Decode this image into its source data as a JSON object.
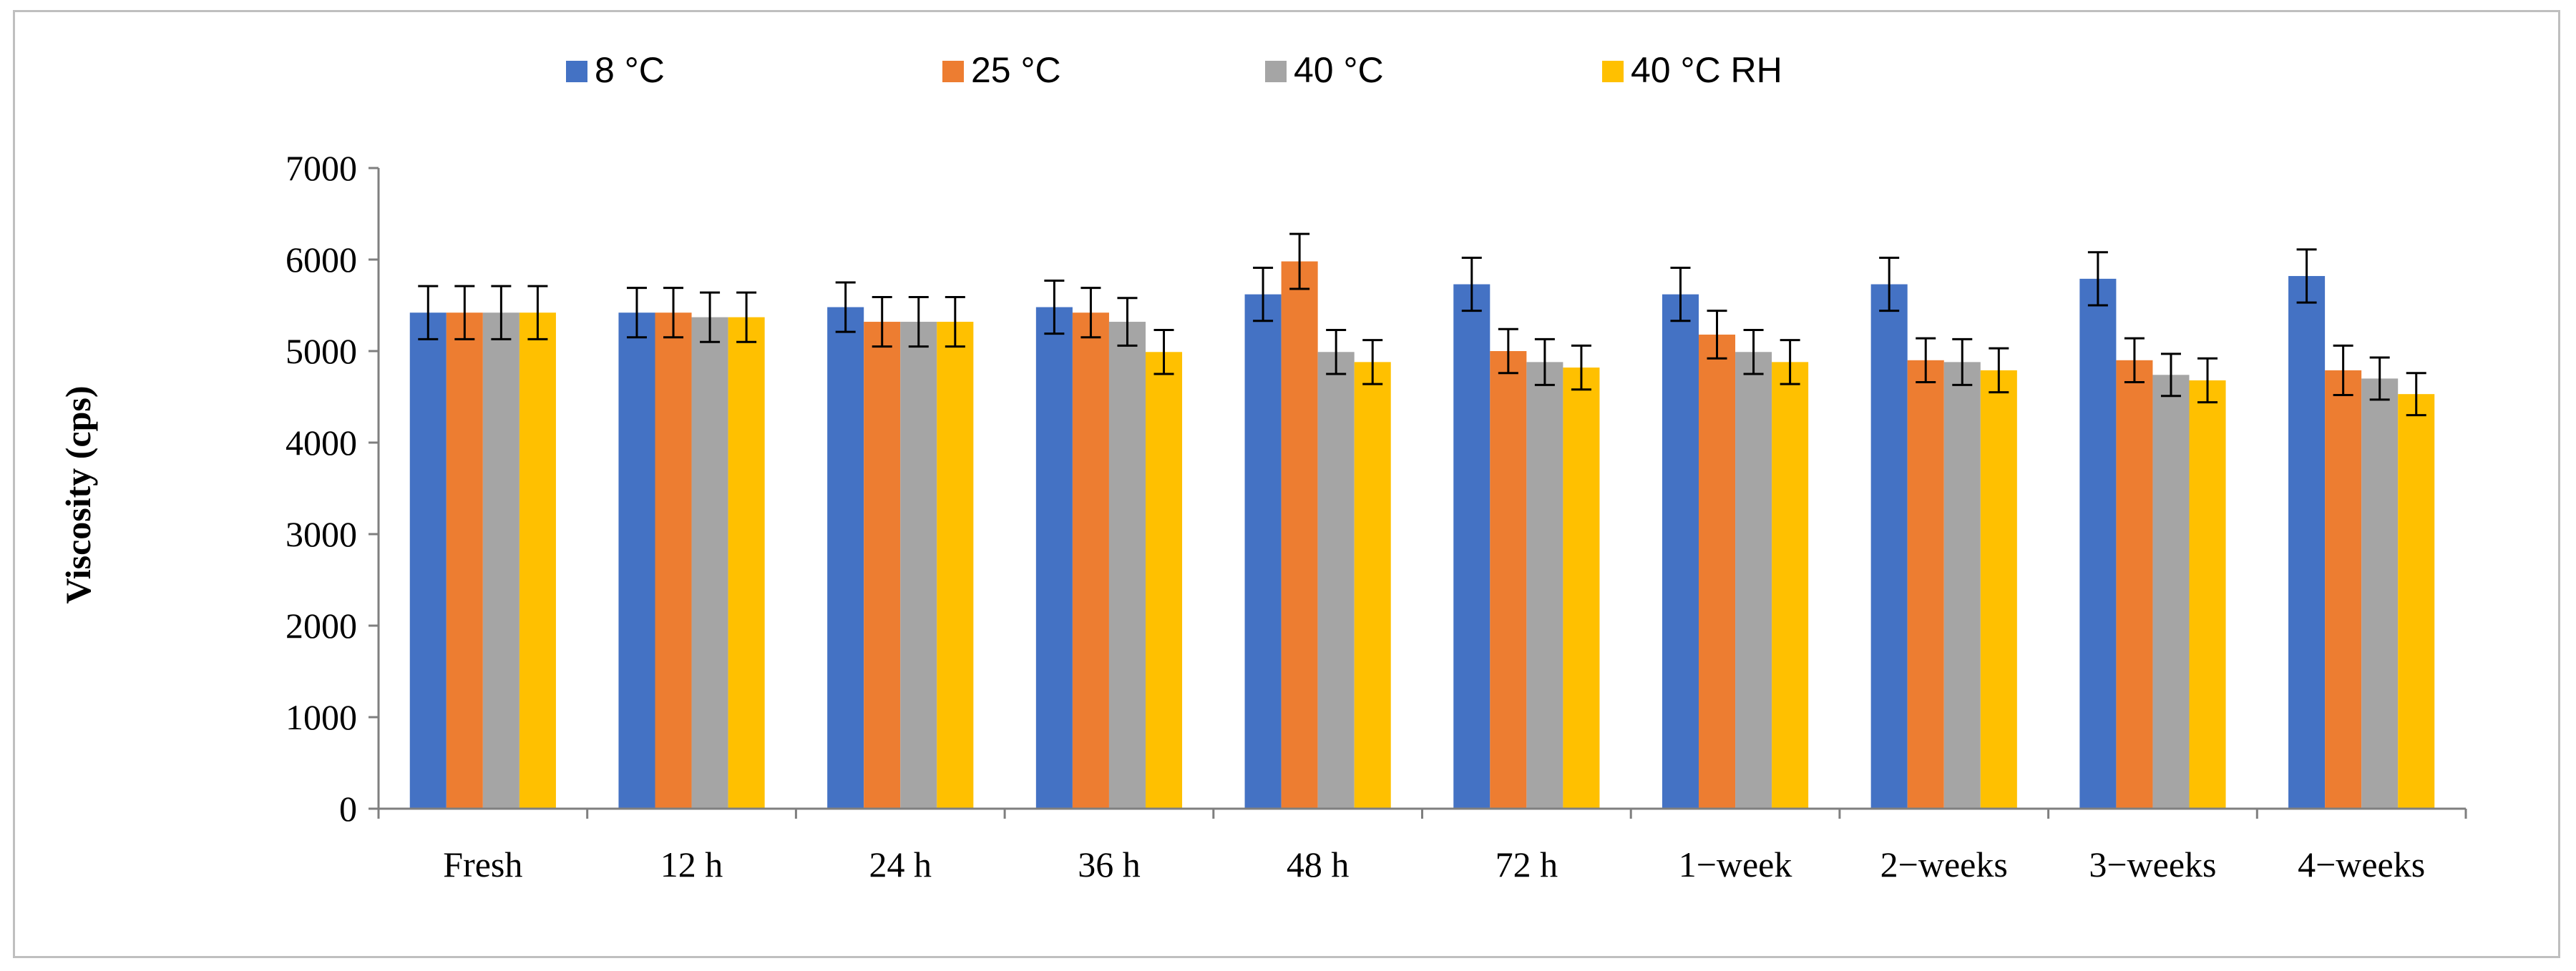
{
  "chart_data": {
    "type": "bar",
    "title": "",
    "xlabel": "",
    "ylabel": "Viscosity (cps)",
    "ylim": [
      0,
      7000
    ],
    "yticks": [
      0,
      1000,
      2000,
      3000,
      4000,
      5000,
      6000,
      7000
    ],
    "grid": false,
    "legend_position": "top",
    "error_bars": true,
    "categories": [
      "Fresh",
      "12 h",
      "24 h",
      "36 h",
      "48 h",
      "72 h",
      "1−week",
      "2−weeks",
      "3−weeks",
      "4−weeks"
    ],
    "series": [
      {
        "name": "8 °C",
        "color": "#4472c4",
        "values": [
          5420,
          5420,
          5480,
          5480,
          5620,
          5730,
          5620,
          5730,
          5790,
          5820
        ],
        "errors": [
          290,
          270,
          270,
          290,
          290,
          290,
          290,
          290,
          290,
          290
        ]
      },
      {
        "name": "25 °C",
        "color": "#ed7d31",
        "values": [
          5420,
          5420,
          5320,
          5420,
          5980,
          5000,
          5180,
          4900,
          4900,
          4790
        ],
        "errors": [
          290,
          270,
          270,
          270,
          300,
          240,
          260,
          240,
          240,
          270
        ]
      },
      {
        "name": "40 °C",
        "color": "#a5a5a5",
        "values": [
          5420,
          5370,
          5320,
          5320,
          4990,
          4880,
          4990,
          4880,
          4740,
          4700
        ],
        "errors": [
          290,
          270,
          270,
          260,
          240,
          250,
          240,
          250,
          230,
          230
        ]
      },
      {
        "name": "40 °C RH",
        "color": "#ffc000",
        "values": [
          5420,
          5370,
          5320,
          4990,
          4880,
          4820,
          4880,
          4790,
          4680,
          4530
        ],
        "errors": [
          290,
          270,
          270,
          240,
          240,
          240,
          240,
          240,
          240,
          230
        ]
      }
    ]
  }
}
